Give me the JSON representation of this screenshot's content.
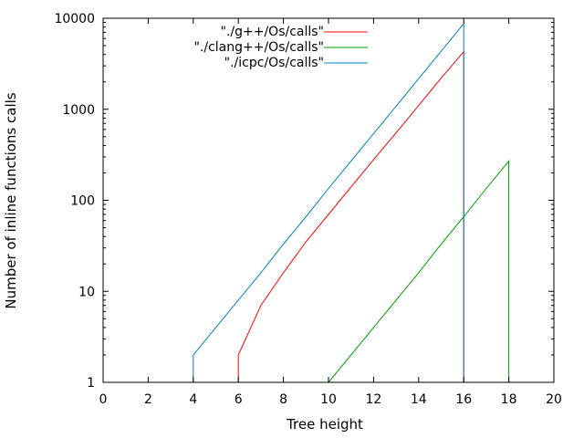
{
  "chart_data": {
    "type": "line",
    "xlabel": "Tree height",
    "ylabel": "Number of inline functions calls",
    "xlim": [
      0,
      20
    ],
    "ylim": [
      1,
      10000
    ],
    "y_scale": "log",
    "x_ticks": [
      0,
      2,
      4,
      6,
      8,
      10,
      12,
      14,
      16,
      18,
      20
    ],
    "y_ticks": [
      1,
      10,
      100,
      1000,
      10000
    ],
    "x_tick_labels": [
      "0",
      "2",
      "4",
      "6",
      "8",
      "10",
      "12",
      "14",
      "16",
      "18",
      "20"
    ],
    "y_tick_labels": [
      "1",
      "10",
      "100",
      "1000",
      "10000"
    ],
    "grid": false,
    "legend_position": "top-center",
    "series": [
      {
        "name": "\"./g++/Os/calls\"",
        "color": "#ff0000",
        "x": [
          6,
          6,
          7,
          8,
          9,
          10,
          11,
          12,
          13,
          14,
          15,
          16,
          16
        ],
        "y": [
          1,
          2,
          7,
          16,
          35,
          70,
          140,
          280,
          550,
          1100,
          2200,
          4300,
          1
        ]
      },
      {
        "name": "\"./clang++/Os/calls\"",
        "color": "#00a000",
        "x": [
          10,
          11,
          12,
          13,
          14,
          15,
          16,
          17,
          18,
          18
        ],
        "y": [
          1,
          2,
          4,
          8,
          16,
          33,
          66,
          135,
          270,
          1
        ]
      },
      {
        "name": "\"./icpc/Os/calls\"",
        "color": "#0080c0",
        "x": [
          4,
          4,
          5,
          6,
          7,
          8,
          9,
          10,
          11,
          12,
          13,
          14,
          15,
          16,
          16
        ],
        "y": [
          1,
          2,
          4,
          8,
          16,
          33,
          66,
          135,
          270,
          540,
          1080,
          2170,
          4350,
          8700,
          1
        ]
      }
    ]
  }
}
